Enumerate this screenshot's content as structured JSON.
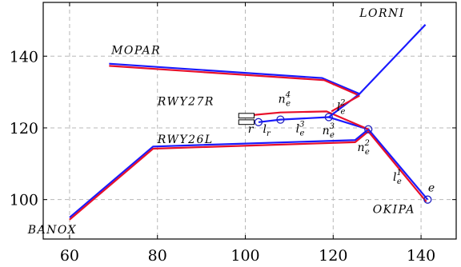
{
  "chart_data": {
    "type": "line",
    "xlim": [
      54,
      148
    ],
    "ylim": [
      89,
      155
    ],
    "x_ticks": [
      60,
      80,
      100,
      120,
      140
    ],
    "y_ticks": [
      100,
      120,
      140
    ],
    "grid": true,
    "colors": {
      "blue": "#1a1aff",
      "red": "#e8102a",
      "grid": "#b8b8b8"
    },
    "waypoints": [
      {
        "id": "banox",
        "label": "BANOX",
        "x": 60,
        "y": 95,
        "label_at": [
          50.5,
          90.6
        ]
      },
      {
        "id": "mopar",
        "label": "MOPAR",
        "x": 69,
        "y": 137.7,
        "label_at": [
          69.5,
          140.6
        ]
      },
      {
        "id": "lorni",
        "label": "LORNI",
        "x": 141,
        "y": 148.8,
        "label_at": [
          126,
          151
        ]
      },
      {
        "id": "okipa",
        "label": "OKIPA",
        "x": 141.5,
        "y": 100,
        "label_at": [
          129,
          96.3
        ]
      },
      {
        "id": "rwy27r",
        "label": "RWY27R",
        "x": 98.5,
        "y": 123.4,
        "label_at": [
          80,
          126.3
        ]
      },
      {
        "id": "rwy26l",
        "label": "RWY26L",
        "x": 98.5,
        "y": 121.6,
        "label_at": [
          80,
          115.8
        ]
      }
    ],
    "routes": [
      {
        "color": "blue",
        "points": [
          [
            60,
            95
          ],
          [
            79,
            114.8
          ],
          [
            125,
            116.6
          ],
          [
            128,
            119.6
          ],
          [
            141.5,
            100
          ]
        ]
      },
      {
        "color": "red",
        "points": [
          [
            60,
            94.4
          ],
          [
            79,
            114.2
          ],
          [
            125,
            116
          ],
          [
            128,
            119
          ],
          [
            141.2,
            99.4
          ]
        ]
      },
      {
        "color": "blue",
        "points": [
          [
            69,
            137.9
          ],
          [
            117.5,
            133.9
          ],
          [
            126,
            129.5
          ],
          [
            141,
            148.8
          ]
        ]
      },
      {
        "color": "red",
        "points": [
          [
            69,
            137.3
          ],
          [
            118,
            133.3
          ],
          [
            126,
            129
          ]
        ]
      },
      {
        "color": "blue",
        "points": [
          [
            103,
            121.6
          ],
          [
            108,
            122.3
          ],
          [
            119,
            123
          ],
          [
            128,
            119.6
          ]
        ]
      },
      {
        "color": "red",
        "points": [
          [
            101,
            123.5
          ],
          [
            108,
            124.3
          ],
          [
            118.5,
            124.6
          ],
          [
            128,
            119.6
          ]
        ]
      },
      {
        "color": "blue",
        "points": [
          [
            119,
            123
          ],
          [
            126,
            129.5
          ]
        ]
      },
      {
        "color": "red",
        "points": [
          [
            119.6,
            124.6
          ],
          [
            126,
            129
          ]
        ]
      }
    ],
    "runways": [
      {
        "x": 98.5,
        "y": 123.4,
        "w": 3.5,
        "h": 1.3
      },
      {
        "x": 98.5,
        "y": 121.6,
        "w": 3.5,
        "h": 1.3
      }
    ],
    "nodes": [
      {
        "id": "r",
        "x": 103,
        "y": 121.6,
        "label": "r",
        "label_at": [
          100.6,
          118.6
        ]
      },
      {
        "id": "n4",
        "x": 108,
        "y": 122.3,
        "label": "n",
        "sub": "e",
        "sup": "4",
        "label_at": [
          107.5,
          127
        ]
      },
      {
        "id": "n3",
        "x": 119,
        "y": 123,
        "label": "n",
        "sub": "e",
        "sup": "3",
        "label_at": [
          117.5,
          118.2
        ]
      },
      {
        "id": "n2",
        "x": 128,
        "y": 119.6,
        "label": "n",
        "sub": "e",
        "sup": "2",
        "label_at": [
          125.5,
          113.5
        ]
      },
      {
        "id": "e",
        "x": 141.5,
        "y": 100,
        "label": "e",
        "label_at": [
          141.6,
          102.3
        ]
      }
    ],
    "edge_labels": [
      {
        "id": "lr",
        "label": "l",
        "sub": "r",
        "label_at": [
          104,
          118.6
        ]
      },
      {
        "id": "l3",
        "label": "l",
        "sub": "e",
        "sup": "3",
        "label_at": [
          111.5,
          118.8
        ]
      },
      {
        "id": "l2",
        "label": "l",
        "sub": "e",
        "sup": "2",
        "label_at": [
          120.8,
          124.8
        ]
      },
      {
        "id": "l1",
        "label": "l",
        "sub": "e",
        "sup": "1",
        "label_at": [
          133.6,
          105.3
        ]
      }
    ]
  }
}
